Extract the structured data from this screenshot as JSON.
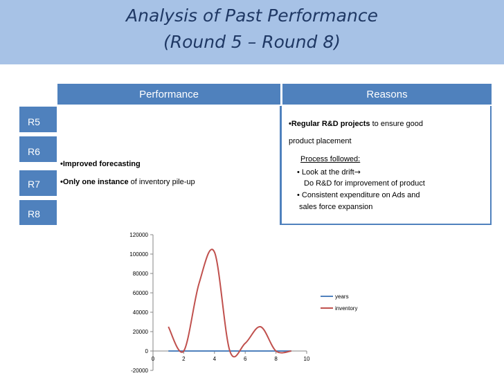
{
  "slide": {
    "title_line1": "Analysis of Past Performance",
    "title_line2": "(Round 5 – Round 8)"
  },
  "headers": {
    "performance": "Performance",
    "reasons": "Reasons"
  },
  "rounds": [
    "R5",
    "R6",
    "R7",
    "R8"
  ],
  "performance": {
    "bullet1_bold": "•Improved forecasting",
    "bullet2_bold": "•Only one instance",
    "bullet2_rest": " of inventory pile-up"
  },
  "reasons": {
    "line1_bold": "•Regular R&D projects",
    "line1_rest": " to ensure good",
    "line2": "product placement",
    "process_label": "Process followed:",
    "step1": "• Look at the drift",
    "step1_arrow": "→",
    "step1_cont": "Do R&D for improvement of product",
    "step2": "• Consistent expenditure on Ads and",
    "step2_cont": "sales force expansion"
  },
  "chart_data": {
    "type": "line",
    "title": "",
    "xlabel": "",
    "ylabel": "",
    "xlim": [
      0,
      10
    ],
    "ylim": [
      -20000,
      120000
    ],
    "x_ticks": [
      0,
      2,
      4,
      6,
      8,
      10
    ],
    "y_ticks": [
      -20000,
      0,
      20000,
      40000,
      60000,
      80000,
      100000,
      120000
    ],
    "grid": false,
    "legend": "right",
    "series": [
      {
        "name": "years",
        "color": "#4f81bd",
        "x": [
          1,
          2,
          3,
          4,
          5,
          6,
          7,
          8,
          9
        ],
        "y": [
          0,
          0,
          0,
          0,
          0,
          0,
          0,
          0,
          0
        ]
      },
      {
        "name": "inventory",
        "color": "#c0504d",
        "x": [
          1,
          2,
          3,
          4,
          5,
          6,
          7,
          8,
          9
        ],
        "y": [
          25000,
          0,
          70000,
          102000,
          0,
          8000,
          25000,
          0,
          0
        ]
      }
    ]
  }
}
